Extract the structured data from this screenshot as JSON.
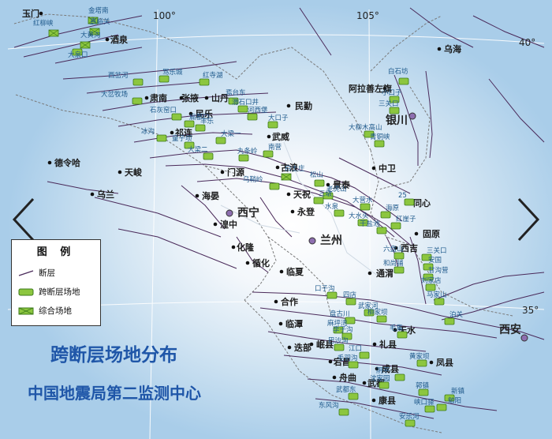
{
  "coords": {
    "lon100": "100°",
    "lon105": "105°",
    "lat40": "40°",
    "lat35": "35°"
  },
  "legend": {
    "title": "图 例",
    "fault": "断层",
    "cross_fault": "跨断层场地",
    "composite": "综合场地"
  },
  "titles": {
    "line1": "跨断层场地分布",
    "line2": "中国地震局第二监测中心"
  },
  "colors": {
    "site_fill": "#8cc63f",
    "site_stroke": "#3b7a1a",
    "site_label": "#1f5a8c",
    "title": "#1f56a8",
    "fault": "#4a2a5a",
    "border": "#7a7a7a",
    "capital": "#8e6fb0"
  },
  "capitals": [
    "西宁",
    "兰州",
    "银川",
    "西安"
  ],
  "cities": [
    "玉门",
    "酒泉",
    "乌海",
    "阿拉善左旗",
    "肃南",
    "张掖",
    "山丹",
    "民乐",
    "民勤",
    "武威",
    "德令哈",
    "天峻",
    "乌兰",
    "祁连",
    "门源",
    "古浪",
    "景泰",
    "中卫",
    "海晏",
    "天祝",
    "永登",
    "同心",
    "湟中",
    "化隆",
    "固原",
    "西吉",
    "循化",
    "临夏",
    "通渭",
    "合作",
    "天水",
    "临潭",
    "岷县",
    "礼县",
    "迭部",
    "宕昌",
    "成县",
    "凤县",
    "舟曲",
    "武都",
    "康县"
  ],
  "sites": [
    "金塔南",
    "红柳峡",
    "嘉峪关",
    "大黄沟",
    "大泉口",
    "西岔河",
    "大岔牧场",
    "骂乐城",
    "红寺湖",
    "石灰窑口",
    "扁都口",
    "丰乐",
    "焉台东",
    "滑石口井",
    "河西堡",
    "大口子",
    "冰沟",
    "大梁一",
    "童子坝",
    "大梁二",
    "南营",
    "丸条岭",
    "乌鞘岭",
    "白土庄",
    "松山",
    "老虎山",
    "三墩",
    "水泉",
    "大营水",
    "大水头",
    "干盐池",
    "海原",
    "红崖子",
    "25",
    "六盘山",
    "和尚铺",
    "三关口",
    "安国",
    "甘沟营",
    "刘家店",
    "马家山",
    "泊关",
    "口子沟",
    "四店",
    "武家河",
    "柳家坝",
    "盘古川",
    "麻坪湾",
    "李子沟",
    "毛集",
    "巴沙沟",
    "江口",
    "毛羽沟",
    "黄家坝",
    "沈家园",
    "郭镇",
    "阴平",
    "武都东",
    "新镇",
    "峡口驿",
    "勉阳",
    "东风沟",
    "安乐河",
    "白石坊",
    "小口子",
    "三关口",
    "大柳木高山",
    "青铜峡"
  ]
}
